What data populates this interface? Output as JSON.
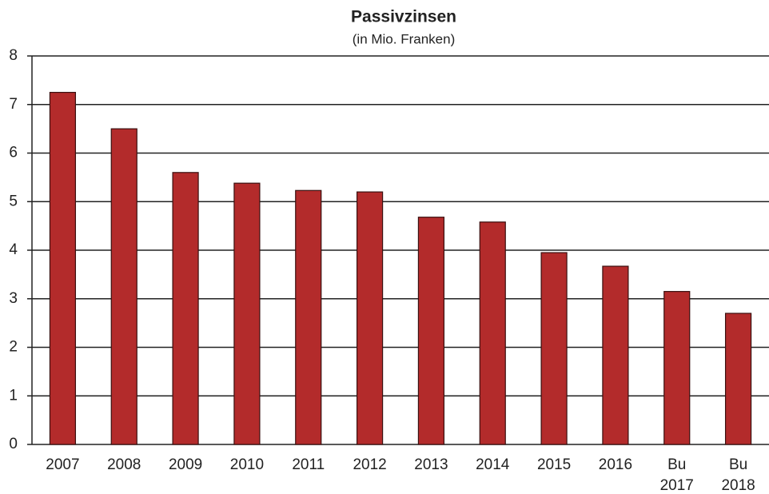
{
  "chart_data": {
    "type": "bar",
    "title": "Passivzinsen",
    "subtitle": "(in Mio. Franken)",
    "categories": [
      "2007",
      "2008",
      "2009",
      "2010",
      "2011",
      "2012",
      "2013",
      "2014",
      "2015",
      "2016",
      "Bu\n2017",
      "Bu\n2018"
    ],
    "values": [
      7.25,
      6.5,
      5.6,
      5.38,
      5.23,
      5.2,
      4.68,
      4.58,
      3.95,
      3.67,
      3.15,
      2.7
    ],
    "color": "#b32b2b",
    "ylim": [
      0,
      8
    ],
    "yticks": [
      0,
      1,
      2,
      3,
      4,
      5,
      6,
      7,
      8
    ],
    "grid": true
  }
}
